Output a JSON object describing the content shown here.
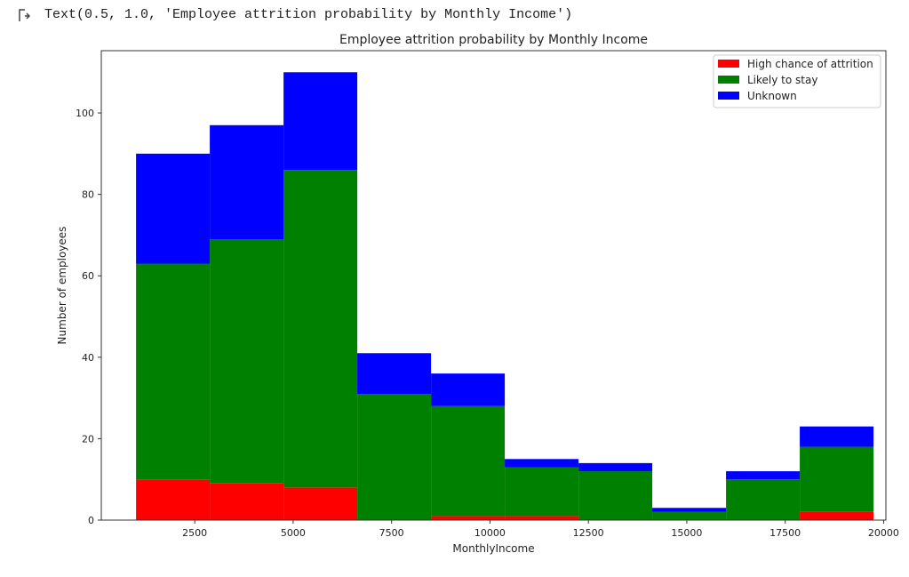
{
  "output_text": "Text(0.5, 1.0, 'Employee attrition probability by Monthly Income')",
  "chart_data": {
    "type": "bar",
    "stacked_histogram": true,
    "title": "Employee attrition probability by Monthly Income",
    "xlabel": "MonthlyIncome",
    "ylabel": "Number of employees",
    "xlim": [
      126,
      20058
    ],
    "ylim": [
      0,
      115.3
    ],
    "xticks": [
      2500,
      5000,
      7500,
      10000,
      12500,
      15000,
      17500,
      20000
    ],
    "yticks": [
      0,
      20,
      40,
      60,
      80,
      100
    ],
    "bin_edges": [
      1009,
      2882,
      4756,
      6629,
      8503,
      10376,
      12250,
      14123,
      15997,
      17870,
      19744
    ],
    "legend_position": "top-right",
    "series": [
      {
        "name": "High chance of attrition",
        "color": "#ff0000",
        "values": [
          10,
          9,
          8,
          0,
          1,
          1,
          0,
          0,
          0,
          2
        ]
      },
      {
        "name": "Likely to stay",
        "color": "#008000",
        "values": [
          53,
          60,
          78,
          31,
          27,
          12,
          12,
          2,
          10,
          16
        ]
      },
      {
        "name": "Unknown",
        "color": "#0000ff",
        "values": [
          27,
          28,
          24,
          10,
          8,
          2,
          2,
          1,
          2,
          5
        ]
      }
    ]
  }
}
